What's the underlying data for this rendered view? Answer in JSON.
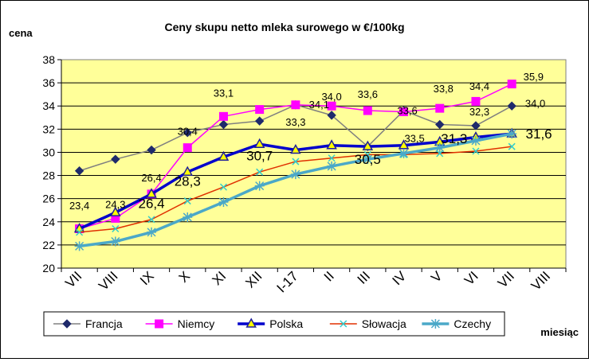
{
  "chart_data": {
    "type": "line",
    "title": "Ceny skupu netto mleka surowego  w €/100kg",
    "ylabel": "cena",
    "xlabel": "miesiąc",
    "ylim": [
      20,
      38
    ],
    "yticks": [
      20,
      22,
      24,
      26,
      28,
      30,
      32,
      34,
      36,
      38
    ],
    "ytick_labels": [
      "20",
      "22",
      "24",
      "26",
      "28",
      "30",
      "32",
      "34",
      "36",
      "38"
    ],
    "grid": true,
    "legend_position": "bottom",
    "categories": [
      "VII",
      "VIII",
      "IX",
      "X",
      "XI",
      "XII",
      "I-17",
      "II",
      "III",
      "IV",
      "V",
      "VI",
      "VII",
      "VIII"
    ],
    "series": [
      {
        "name": "Francja",
        "color": "#808080",
        "marker_color": "#1f2a6b",
        "marker": "diamond",
        "line_width": 1.5,
        "values": [
          28.4,
          29.4,
          30.2,
          31.7,
          32.4,
          32.7,
          34.1,
          33.2,
          30.5,
          33.6,
          32.4,
          32.3,
          34.0,
          null
        ]
      },
      {
        "name": "Niemcy",
        "color": "#ff00ff",
        "marker_color": "#ff00ff",
        "marker": "square",
        "line_width": 1.5,
        "values": [
          23.4,
          24.3,
          26.4,
          30.4,
          33.1,
          33.7,
          34.1,
          34.0,
          33.6,
          33.5,
          33.8,
          34.4,
          35.9,
          null
        ]
      },
      {
        "name": "Polska",
        "color": "#0000cc",
        "marker_color": "#1f1f99",
        "marker": "triangle",
        "line_width": 3.5,
        "values": [
          23.4,
          24.8,
          26.4,
          28.3,
          29.6,
          30.7,
          30.2,
          30.6,
          30.5,
          30.6,
          30.9,
          31.3,
          31.6,
          null
        ]
      },
      {
        "name": "Słowacja",
        "color": "#e03000",
        "marker_color": "#33cccc",
        "marker": "x",
        "line_width": 1.5,
        "values": [
          23.1,
          23.4,
          24.2,
          25.8,
          27.0,
          28.3,
          29.2,
          29.5,
          29.8,
          29.8,
          29.9,
          30.1,
          30.5,
          null
        ]
      },
      {
        "name": "Czechy",
        "color": "#4ba8c8",
        "marker_color": "#4ba8c8",
        "marker": "star",
        "line_width": 3.5,
        "values": [
          21.9,
          22.3,
          23.1,
          24.4,
          25.7,
          27.1,
          28.1,
          28.8,
          29.4,
          29.9,
          30.4,
          31.0,
          31.6,
          null
        ]
      }
    ],
    "data_labels": [
      {
        "text": "23,4",
        "cat": 0,
        "y": 25.1,
        "size": "s"
      },
      {
        "text": "24,3",
        "cat": 1,
        "y": 25.2,
        "size": "s"
      },
      {
        "text": "26,4",
        "cat": 2,
        "y": 27.5,
        "size": "s"
      },
      {
        "text": "26,4",
        "cat": 2,
        "y": 25.2,
        "size": "l"
      },
      {
        "text": "30,4",
        "cat": 3,
        "y": 31.5,
        "size": "s"
      },
      {
        "text": "28,3",
        "cat": 3,
        "y": 27.1,
        "size": "l"
      },
      {
        "text": "33,1",
        "cat": 4,
        "y": 34.8,
        "size": "s"
      },
      {
        "text": "30,7",
        "cat": 5,
        "y": 29.3,
        "size": "l"
      },
      {
        "text": "33,3",
        "cat": 6,
        "y": 32.3,
        "size": "s"
      },
      {
        "text": "34,1",
        "cat": 6.65,
        "y": 33.8,
        "size": "s"
      },
      {
        "text": "34,0",
        "cat": 7,
        "y": 34.5,
        "size": "s"
      },
      {
        "text": "30,5",
        "cat": 8,
        "y": 29.0,
        "size": "l"
      },
      {
        "text": "33,6",
        "cat": 8,
        "y": 34.7,
        "size": "s"
      },
      {
        "text": "33,6",
        "cat": 9.1,
        "y": 33.3,
        "size": "s"
      },
      {
        "text": "33,5",
        "cat": 9.3,
        "y": 30.9,
        "size": "s"
      },
      {
        "text": "33,8",
        "cat": 10.1,
        "y": 35.2,
        "size": "s"
      },
      {
        "text": "31,3",
        "cat": 10.4,
        "y": 30.8,
        "size": "l"
      },
      {
        "text": "32,3",
        "cat": 11.1,
        "y": 33.2,
        "size": "s"
      },
      {
        "text": "34,4",
        "cat": 11.1,
        "y": 35.4,
        "size": "s"
      },
      {
        "text": "35,9",
        "cat": 12.6,
        "y": 36.2,
        "size": "s"
      },
      {
        "text": "34,0",
        "cat": 12.65,
        "y": 33.9,
        "size": "s"
      },
      {
        "text": "31,6",
        "cat": 12.75,
        "y": 31.2,
        "size": "l"
      }
    ]
  },
  "colors": {
    "plot_background": "#ffff99",
    "grid": "#000000"
  }
}
